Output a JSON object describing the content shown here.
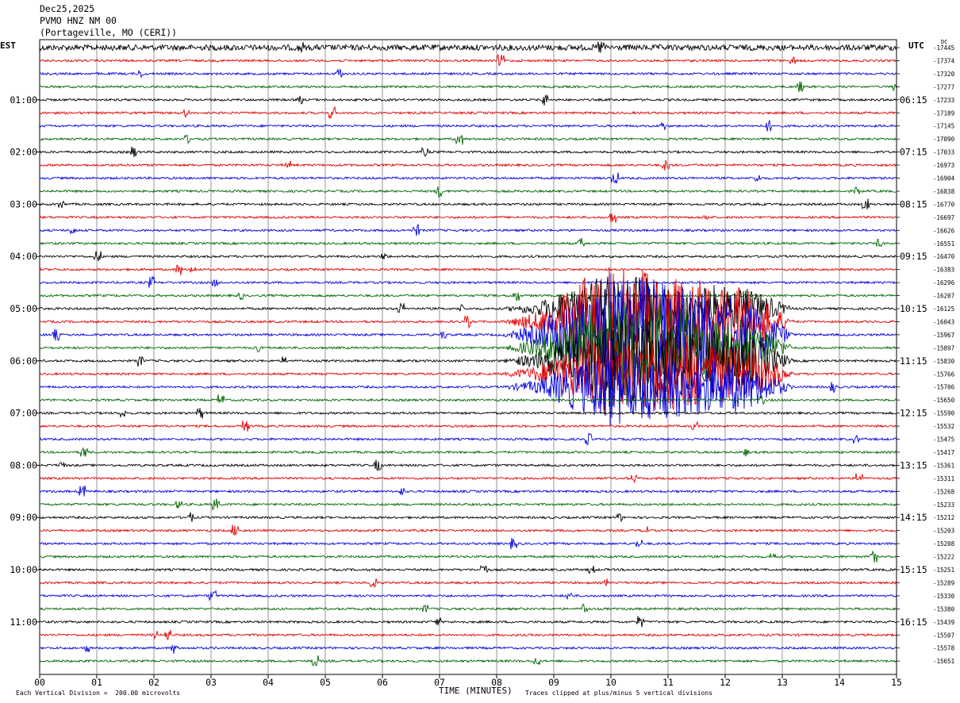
{
  "header": {
    "date": "Dec25,2025",
    "station": "PVMO HNZ NM 00",
    "location": "(Portageville, MO (CERI))"
  },
  "left_zone": "EST",
  "right_zone": "UTC",
  "dc_label": "DC",
  "footer": {
    "scale_note": "Each Vertical Division =  200.00 microvolts",
    "clip_note": "Traces clipped at plus/minus 5 vertical divisions"
  },
  "trace_colors": [
    "#000000",
    "#e00000",
    "#0000e0",
    "#006400"
  ],
  "chart_data": {
    "type": "line",
    "title": "",
    "xlabel": "TIME (MINUTES)",
    "ylabel": "",
    "xlim": [
      0,
      15
    ],
    "x_ticks": [
      "00",
      "01",
      "02",
      "03",
      "04",
      "05",
      "06",
      "07",
      "08",
      "09",
      "10",
      "11",
      "12",
      "13",
      "14",
      "15"
    ],
    "grid": true,
    "left_hour_labels": [
      "01:00",
      "02:00",
      "03:00",
      "04:00",
      "05:00",
      "06:00",
      "07:00",
      "08:00",
      "09:00",
      "10:00",
      "11:00"
    ],
    "right_hour_labels": [
      "06:15",
      "07:15",
      "08:15",
      "09:15",
      "10:15",
      "11:15",
      "12:15",
      "13:15",
      "14:15",
      "15:15",
      "16:15"
    ],
    "dc_offsets": [
      "-17445",
      "-17374",
      "-17320",
      "-17277",
      "-17233",
      "-17189",
      "-17145",
      "-17090",
      "-17033",
      "-16973",
      "-16904",
      "-16838",
      "-16770",
      "-16697",
      "-16626",
      "-16551",
      "-16470",
      "-16383",
      "-16296",
      "-16207",
      "-16125",
      "-16043",
      "-15967",
      "-15897",
      "-15830",
      "-15766",
      "-15706",
      "-15650",
      "-15590",
      "-15532",
      "-15475",
      "-15417",
      "-15361",
      "-15311",
      "-15268",
      "-15233",
      "-15212",
      "-15203",
      "-15208",
      "-15222",
      "-15251",
      "-15289",
      "-15330",
      "-15380",
      "-15439",
      "-15507",
      "-15578",
      "-15651"
    ],
    "event": {
      "start_minute": 8.7,
      "peak_minute": 10.0,
      "end_minute": 12.4,
      "trace_rows": [
        20,
        21,
        22,
        23,
        24,
        25,
        26
      ]
    }
  }
}
